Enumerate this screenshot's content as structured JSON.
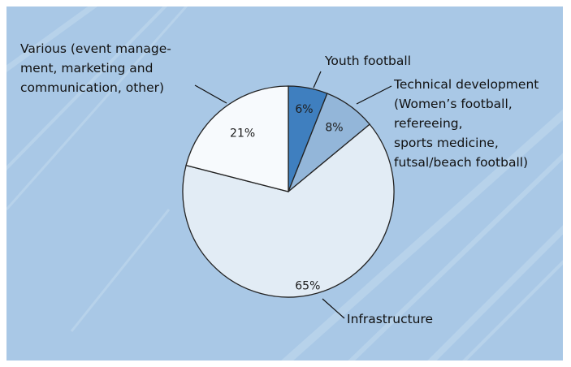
{
  "chart_data": {
    "type": "pie",
    "slices": [
      {
        "label": "Youth football",
        "value": 6,
        "value_label": "6%",
        "color": "#3f7fbf",
        "label_lines": [
          "Youth football"
        ]
      },
      {
        "label": "Technical development (Women’s football, refereeing, sports medicine, futsal/beach football)",
        "value": 8,
        "value_label": "8%",
        "color": "#93b6d9",
        "label_lines": [
          "Technical development",
          "(Women’s football,",
          "refereeing,",
          "sports medicine,",
          "futsal/beach football)"
        ]
      },
      {
        "label": "Infrastructure",
        "value": 65,
        "value_label": "65%",
        "color": "#e2ecf5",
        "label_lines": [
          "Infrastructure"
        ]
      },
      {
        "label": "Various (event management, marketing and communication, other)",
        "value": 21,
        "value_label": "21%",
        "color": "#f7fafd",
        "label_lines": [
          "Various (event manage-",
          "ment, marketing and",
          "communication, other)"
        ]
      }
    ],
    "start_angle": "12 o'clock",
    "direction": "clockwise",
    "legend": "none (labels placed outside slices with leader lines)"
  },
  "colors": {
    "background": "#a9c8e6",
    "stripes": "#c4dbef",
    "outline": "#222222"
  }
}
